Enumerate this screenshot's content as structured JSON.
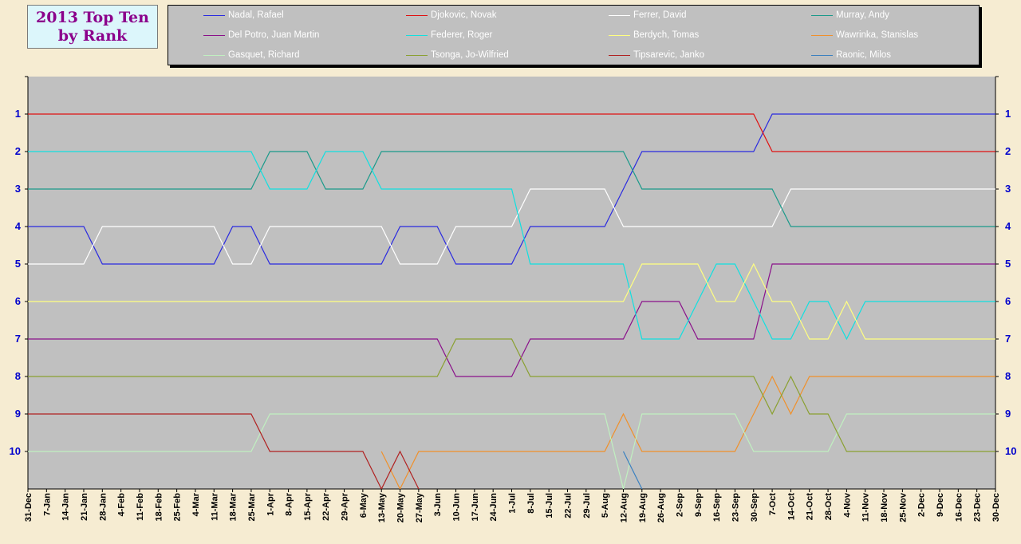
{
  "title": {
    "line1": "2013 Top Ten",
    "line2": "by Rank"
  },
  "chart_data": {
    "type": "line",
    "title": "2013 Top Ten by Rank",
    "xlabel": "",
    "ylabel": "",
    "ylim": [
      11,
      0
    ],
    "yticks": [
      1,
      2,
      3,
      4,
      5,
      6,
      7,
      8,
      9,
      10
    ],
    "grid": false,
    "legend_position": "top",
    "plot_background": "#c0c0c0",
    "page_background": "#f6ecd2",
    "categories": [
      "31-Dec",
      "7-Jan",
      "14-Jan",
      "21-Jan",
      "28-Jan",
      "4-Feb",
      "11-Feb",
      "18-Feb",
      "25-Feb",
      "4-Mar",
      "11-Mar",
      "18-Mar",
      "25-Mar",
      "1-Apr",
      "8-Apr",
      "15-Apr",
      "22-Apr",
      "29-Apr",
      "6-May",
      "13-May",
      "20-May",
      "27-May",
      "3-Jun",
      "10-Jun",
      "17-Jun",
      "24-Jun",
      "1-Jul",
      "8-Jul",
      "15-Jul",
      "22-Jul",
      "29-Jul",
      "5-Aug",
      "12-Aug",
      "19-Aug",
      "26-Aug",
      "2-Sep",
      "9-Sep",
      "16-Sep",
      "23-Sep",
      "30-Sep",
      "7-Oct",
      "14-Oct",
      "21-Oct",
      "28-Oct",
      "4-Nov",
      "11-Nov",
      "18-Nov",
      "25-Nov",
      "2-Dec",
      "9-Dec",
      "16-Dec",
      "23-Dec",
      "30-Dec"
    ],
    "series": [
      {
        "name": "Nadal, Rafael",
        "color": "#2a2ae0",
        "values": [
          4,
          4,
          4,
          4,
          5,
          5,
          5,
          5,
          5,
          5,
          5,
          4,
          4,
          5,
          5,
          5,
          5,
          5,
          5,
          5,
          4,
          4,
          4,
          5,
          5,
          5,
          5,
          4,
          4,
          4,
          4,
          4,
          3,
          2,
          2,
          2,
          2,
          2,
          2,
          2,
          1,
          1,
          1,
          1,
          1,
          1,
          1,
          1,
          1,
          1,
          1,
          1,
          1
        ]
      },
      {
        "name": "Djokovic, Novak",
        "color": "#e01010",
        "values": [
          1,
          1,
          1,
          1,
          1,
          1,
          1,
          1,
          1,
          1,
          1,
          1,
          1,
          1,
          1,
          1,
          1,
          1,
          1,
          1,
          1,
          1,
          1,
          1,
          1,
          1,
          1,
          1,
          1,
          1,
          1,
          1,
          1,
          1,
          1,
          1,
          1,
          1,
          1,
          1,
          2,
          2,
          2,
          2,
          2,
          2,
          2,
          2,
          2,
          2,
          2,
          2,
          2
        ]
      },
      {
        "name": "Ferrer, David",
        "color": "#ffffff",
        "values": [
          5,
          5,
          5,
          5,
          4,
          4,
          4,
          4,
          4,
          4,
          4,
          5,
          5,
          4,
          4,
          4,
          4,
          4,
          4,
          4,
          5,
          5,
          5,
          4,
          4,
          4,
          4,
          3,
          3,
          3,
          3,
          3,
          4,
          4,
          4,
          4,
          4,
          4,
          4,
          4,
          4,
          3,
          3,
          3,
          3,
          3,
          3,
          3,
          3,
          3,
          3,
          3,
          3
        ]
      },
      {
        "name": "Murray, Andy",
        "color": "#1a9a8a",
        "values": [
          3,
          3,
          3,
          3,
          3,
          3,
          3,
          3,
          3,
          3,
          3,
          3,
          3,
          2,
          2,
          2,
          3,
          3,
          3,
          2,
          2,
          2,
          2,
          2,
          2,
          2,
          2,
          2,
          2,
          2,
          2,
          2,
          2,
          3,
          3,
          3,
          3,
          3,
          3,
          3,
          3,
          4,
          4,
          4,
          4,
          4,
          4,
          4,
          4,
          4,
          4,
          4,
          4
        ]
      },
      {
        "name": "Del Potro, Juan Martin",
        "color": "#8a108a",
        "values": [
          7,
          7,
          7,
          7,
          7,
          7,
          7,
          7,
          7,
          7,
          7,
          7,
          7,
          7,
          7,
          7,
          7,
          7,
          7,
          7,
          7,
          7,
          7,
          8,
          8,
          8,
          8,
          7,
          7,
          7,
          7,
          7,
          7,
          6,
          6,
          6,
          7,
          7,
          7,
          7,
          5,
          5,
          5,
          5,
          5,
          5,
          5,
          5,
          5,
          5,
          5,
          5,
          5
        ]
      },
      {
        "name": "Federer, Roger",
        "color": "#10e0e0",
        "values": [
          2,
          2,
          2,
          2,
          2,
          2,
          2,
          2,
          2,
          2,
          2,
          2,
          2,
          3,
          3,
          3,
          2,
          2,
          2,
          3,
          3,
          3,
          3,
          3,
          3,
          3,
          3,
          5,
          5,
          5,
          5,
          5,
          5,
          7,
          7,
          7,
          6,
          5,
          5,
          6,
          7,
          7,
          6,
          6,
          7,
          6,
          6,
          6,
          6,
          6,
          6,
          6,
          6
        ]
      },
      {
        "name": "Berdych, Tomas",
        "color": "#ffff80",
        "values": [
          6,
          6,
          6,
          6,
          6,
          6,
          6,
          6,
          6,
          6,
          6,
          6,
          6,
          6,
          6,
          6,
          6,
          6,
          6,
          6,
          6,
          6,
          6,
          6,
          6,
          6,
          6,
          6,
          6,
          6,
          6,
          6,
          6,
          5,
          5,
          5,
          5,
          6,
          6,
          5,
          6,
          6,
          7,
          7,
          6,
          7,
          7,
          7,
          7,
          7,
          7,
          7,
          7
        ]
      },
      {
        "name": "Wawrinka, Stanislas",
        "color": "#f0902a",
        "values": [
          null,
          null,
          null,
          null,
          null,
          null,
          null,
          null,
          null,
          null,
          null,
          null,
          null,
          null,
          null,
          null,
          null,
          null,
          null,
          10,
          11,
          10,
          10,
          10,
          10,
          10,
          10,
          10,
          10,
          10,
          10,
          10,
          9,
          10,
          10,
          10,
          10,
          10,
          10,
          9,
          8,
          9,
          8,
          8,
          8,
          8,
          8,
          8,
          8,
          8,
          8,
          8,
          8
        ]
      },
      {
        "name": "Gasquet, Richard",
        "color": "#c0f0c0",
        "values": [
          10,
          10,
          10,
          10,
          10,
          10,
          10,
          10,
          10,
          10,
          10,
          10,
          10,
          9,
          9,
          9,
          9,
          9,
          9,
          9,
          9,
          9,
          9,
          9,
          9,
          9,
          9,
          9,
          9,
          9,
          9,
          9,
          11,
          9,
          9,
          9,
          9,
          9,
          9,
          10,
          10,
          10,
          10,
          10,
          9,
          9,
          9,
          9,
          9,
          9,
          9,
          9,
          9
        ]
      },
      {
        "name": "Tsonga, Jo-Wilfried",
        "color": "#8aa030",
        "values": [
          8,
          8,
          8,
          8,
          8,
          8,
          8,
          8,
          8,
          8,
          8,
          8,
          8,
          8,
          8,
          8,
          8,
          8,
          8,
          8,
          8,
          8,
          8,
          7,
          7,
          7,
          7,
          8,
          8,
          8,
          8,
          8,
          8,
          8,
          8,
          8,
          8,
          8,
          8,
          8,
          9,
          8,
          9,
          9,
          10,
          10,
          10,
          10,
          10,
          10,
          10,
          10,
          10
        ]
      },
      {
        "name": "Tipsarevic, Janko",
        "color": "#b02020",
        "values": [
          9,
          9,
          9,
          9,
          9,
          9,
          9,
          9,
          9,
          9,
          9,
          9,
          9,
          10,
          10,
          10,
          10,
          10,
          10,
          11,
          10,
          11,
          null,
          null,
          null,
          null,
          null,
          null,
          null,
          null,
          null,
          null,
          null,
          null,
          null,
          null,
          null,
          null,
          null,
          null,
          null,
          null,
          null,
          null,
          null,
          null,
          null,
          null,
          null,
          null,
          null,
          null,
          null
        ]
      },
      {
        "name": "Raonic, Milos",
        "color": "#3a80c0",
        "values": [
          null,
          null,
          null,
          null,
          null,
          null,
          null,
          null,
          null,
          null,
          null,
          null,
          null,
          null,
          null,
          null,
          null,
          null,
          null,
          null,
          null,
          null,
          null,
          null,
          null,
          null,
          null,
          null,
          null,
          null,
          null,
          null,
          10,
          11,
          null,
          null,
          null,
          null,
          null,
          null,
          null,
          null,
          null,
          null,
          null,
          null,
          null,
          null,
          null,
          null,
          null,
          null,
          null
        ]
      }
    ]
  }
}
